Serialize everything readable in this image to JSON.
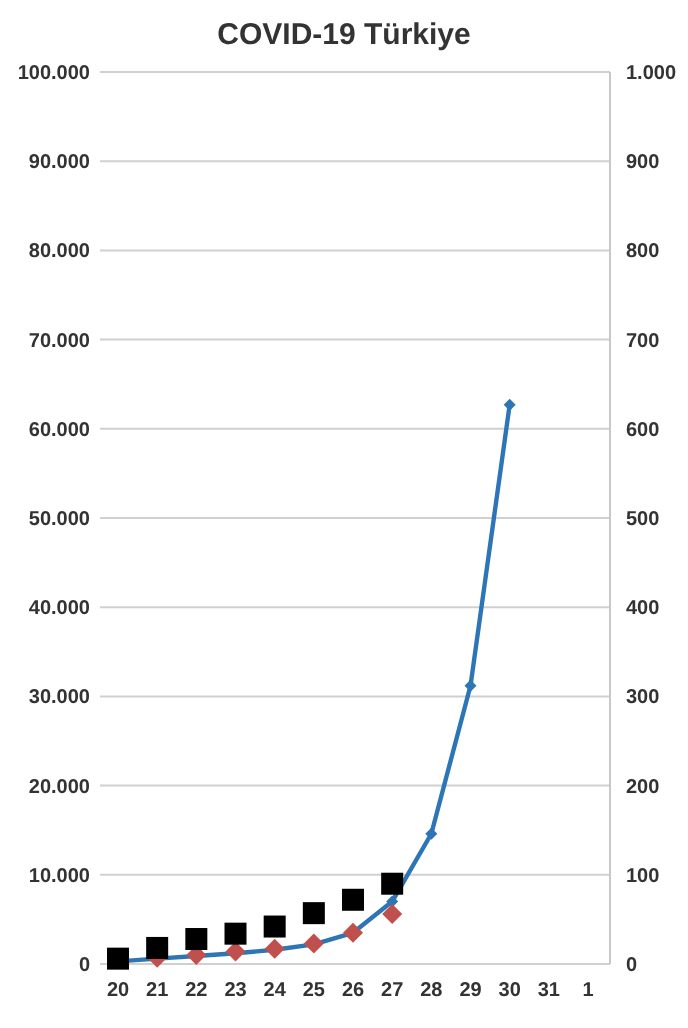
{
  "chart_data": {
    "type": "line",
    "title": "COVID-19 Türkiye",
    "categories": [
      "20",
      "21",
      "22",
      "23",
      "24",
      "25",
      "26",
      "27",
      "28",
      "29",
      "30",
      "31",
      "1"
    ],
    "ylim": [
      0,
      100000
    ],
    "yticks": [
      0,
      {
        "value": 10000,
        "label": "10.000"
      },
      {
        "value": 20000,
        "label": "20.000"
      },
      {
        "value": 30000,
        "label": "30.000"
      },
      {
        "value": 40000,
        "label": "40.000"
      },
      {
        "value": 50000,
        "label": "50.000"
      },
      {
        "value": 60000,
        "label": "60.000"
      },
      {
        "value": 70000,
        "label": "70.000"
      },
      {
        "value": 80000,
        "label": "80.000"
      },
      {
        "value": 90000,
        "label": "90.000"
      },
      {
        "value": 100000,
        "label": "100.000"
      }
    ],
    "y2lim": [
      0,
      1000
    ],
    "y2ticks": [
      0,
      100,
      200,
      300,
      400,
      500,
      600,
      700,
      800,
      900,
      {
        "value": 1000,
        "label": "1.000"
      }
    ],
    "grid": "y",
    "series": [
      {
        "color": "#2e75b6",
        "marker": "diamond",
        "values": [
          300,
          600,
          900,
          1200,
          1600,
          2200,
          3500,
          7000,
          14600,
          31200,
          62700,
          null,
          null
        ]
      },
      {
        "type": "scatter",
        "color": "#c0504d",
        "marker": "diamond",
        "values": [
          null,
          700,
          1000,
          1400,
          1700,
          2300,
          3500,
          5600,
          null,
          null,
          null,
          null,
          null
        ]
      },
      {
        "type": "scatter",
        "color": "#000000",
        "marker": "square",
        "axis": "y2",
        "values": [
          6,
          18,
          28,
          34,
          42,
          57,
          72,
          90,
          null,
          null,
          null,
          null,
          null
        ]
      }
    ]
  }
}
